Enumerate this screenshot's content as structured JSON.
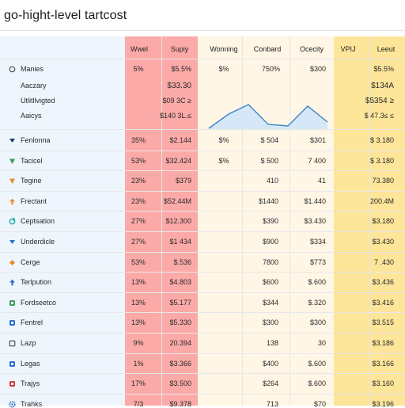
{
  "title": "go-hight-level tartcost",
  "columns": {
    "c1": "Wwel",
    "c2": "Supiy",
    "c3": "Wonning",
    "c4": "Conbard",
    "c5": "Ocecity",
    "c6": "VPIJ",
    "c7": "Leeut"
  },
  "top_group": {
    "header_label": "Manies",
    "header_values": [
      "5%",
      "$5.5%",
      "$%",
      "750%",
      "$300",
      "$5.5%"
    ],
    "sub_rows": [
      {
        "label": "Aaczary",
        "red": "$33.30",
        "yellow": "$134A"
      },
      {
        "label": "Utlitllvigted",
        "red": "$09 3C ≥",
        "yellow": "$5354 ≥"
      },
      {
        "label": "Aaicys",
        "red": "$140 3L.≤",
        "yellow": "$ 47.3≤ ≤"
      }
    ]
  },
  "rows": [
    {
      "name": "Fenlonna",
      "icon": "chevron-down-icon",
      "icon_color": "#1a3a5c",
      "v1": "35%",
      "v2": "$2.144",
      "v3": "$%",
      "v4": "$ 504",
      "v5": "$301",
      "v6": "$ 3.180"
    },
    {
      "name": "Tacicel",
      "icon": "triangle-icon",
      "icon_color": "#3aa05a",
      "v1": "53%",
      "v2": "$32.424",
      "v3": "$%",
      "v4": "$ 500",
      "v5": "7 400",
      "v6": "$ 3.180"
    },
    {
      "name": "Tegine",
      "icon": "triangle-icon",
      "icon_color": "#e8892a",
      "v1": "23%",
      "v2": "$379",
      "v3": "",
      "v4": "410",
      "v5": "41",
      "v6": "73.380"
    },
    {
      "name": "Frectant",
      "icon": "arrow-up-icon",
      "icon_color": "#e8892a",
      "v1": "23%",
      "v2": "$52.44M",
      "v3": "",
      "v4": "$1440",
      "v5": "$1.440",
      "v6": "200.4M"
    },
    {
      "name": "Ceptsation",
      "icon": "refresh-icon",
      "icon_color": "#2ab0b0",
      "v1": "27%",
      "v2": "$12.300",
      "v3": "",
      "v4": "$390",
      "v5": "$3.430",
      "v6": "$3.180"
    },
    {
      "name": "Underdicle",
      "icon": "chevron-down-icon",
      "icon_color": "#2a6fd0",
      "v1": "27%",
      "v2": "$1 434",
      "v3": "",
      "v4": "$900",
      "v5": "$334",
      "v6": "$3.430"
    },
    {
      "name": "Cerge",
      "icon": "tag-icon",
      "icon_color": "#e8892a",
      "v1": "53%",
      "v2": "$.536",
      "v3": "",
      "v4": "7800",
      "v5": "$773",
      "v6": "7 .430"
    },
    {
      "name": "Terlpution",
      "icon": "arrow-up-icon",
      "icon_color": "#2a6fd0",
      "v1": "13%",
      "v2": "$4.803",
      "v3": "",
      "v4": "$600",
      "v5": "$.600",
      "v6": "$3.436"
    },
    {
      "name": "Fordseetco",
      "icon": "square-icon",
      "icon_color": "#3aa05a",
      "v1": "13%",
      "v2": "$5.177",
      "v3": "",
      "v4": "$344",
      "v5": "$.320",
      "v6": "$3.416"
    },
    {
      "name": "Fentrel",
      "icon": "square-icon",
      "icon_color": "#2a6fd0",
      "v1": "13%",
      "v2": "$5.330",
      "v3": "",
      "v4": "$300",
      "v5": "$300",
      "v6": "$3.515"
    },
    {
      "name": "Lazp",
      "icon": "square-outline-icon",
      "icon_color": "#333333",
      "v1": "9%",
      "v2": "20.394",
      "v3": "",
      "v4": "138",
      "v5": "30",
      "v6": "$3.186"
    },
    {
      "name": "Legas",
      "icon": "square-icon",
      "icon_color": "#2a6fd0",
      "v1": "1%",
      "v2": "$3.366",
      "v3": "",
      "v4": "$400",
      "v5": "$.600",
      "v6": "$3.166"
    },
    {
      "name": "Trajys",
      "icon": "square-icon",
      "icon_color": "#d03a3a",
      "v1": "17%",
      "v2": "$3.500",
      "v3": "",
      "v4": "$264",
      "v5": "$.600",
      "v6": "$3.160"
    },
    {
      "name": "Trahks",
      "icon": "gear-icon",
      "icon_color": "#2a6fd0",
      "v1": "7/3",
      "v2": "$9.378",
      "v3": "",
      "v4": "713",
      "v5": "$70",
      "v6": "$3.196"
    }
  ],
  "sparkline": {
    "color": "#3d86c6",
    "fill": "#d6e8f7",
    "values": [
      0,
      18,
      30,
      5,
      3,
      28,
      8
    ]
  }
}
